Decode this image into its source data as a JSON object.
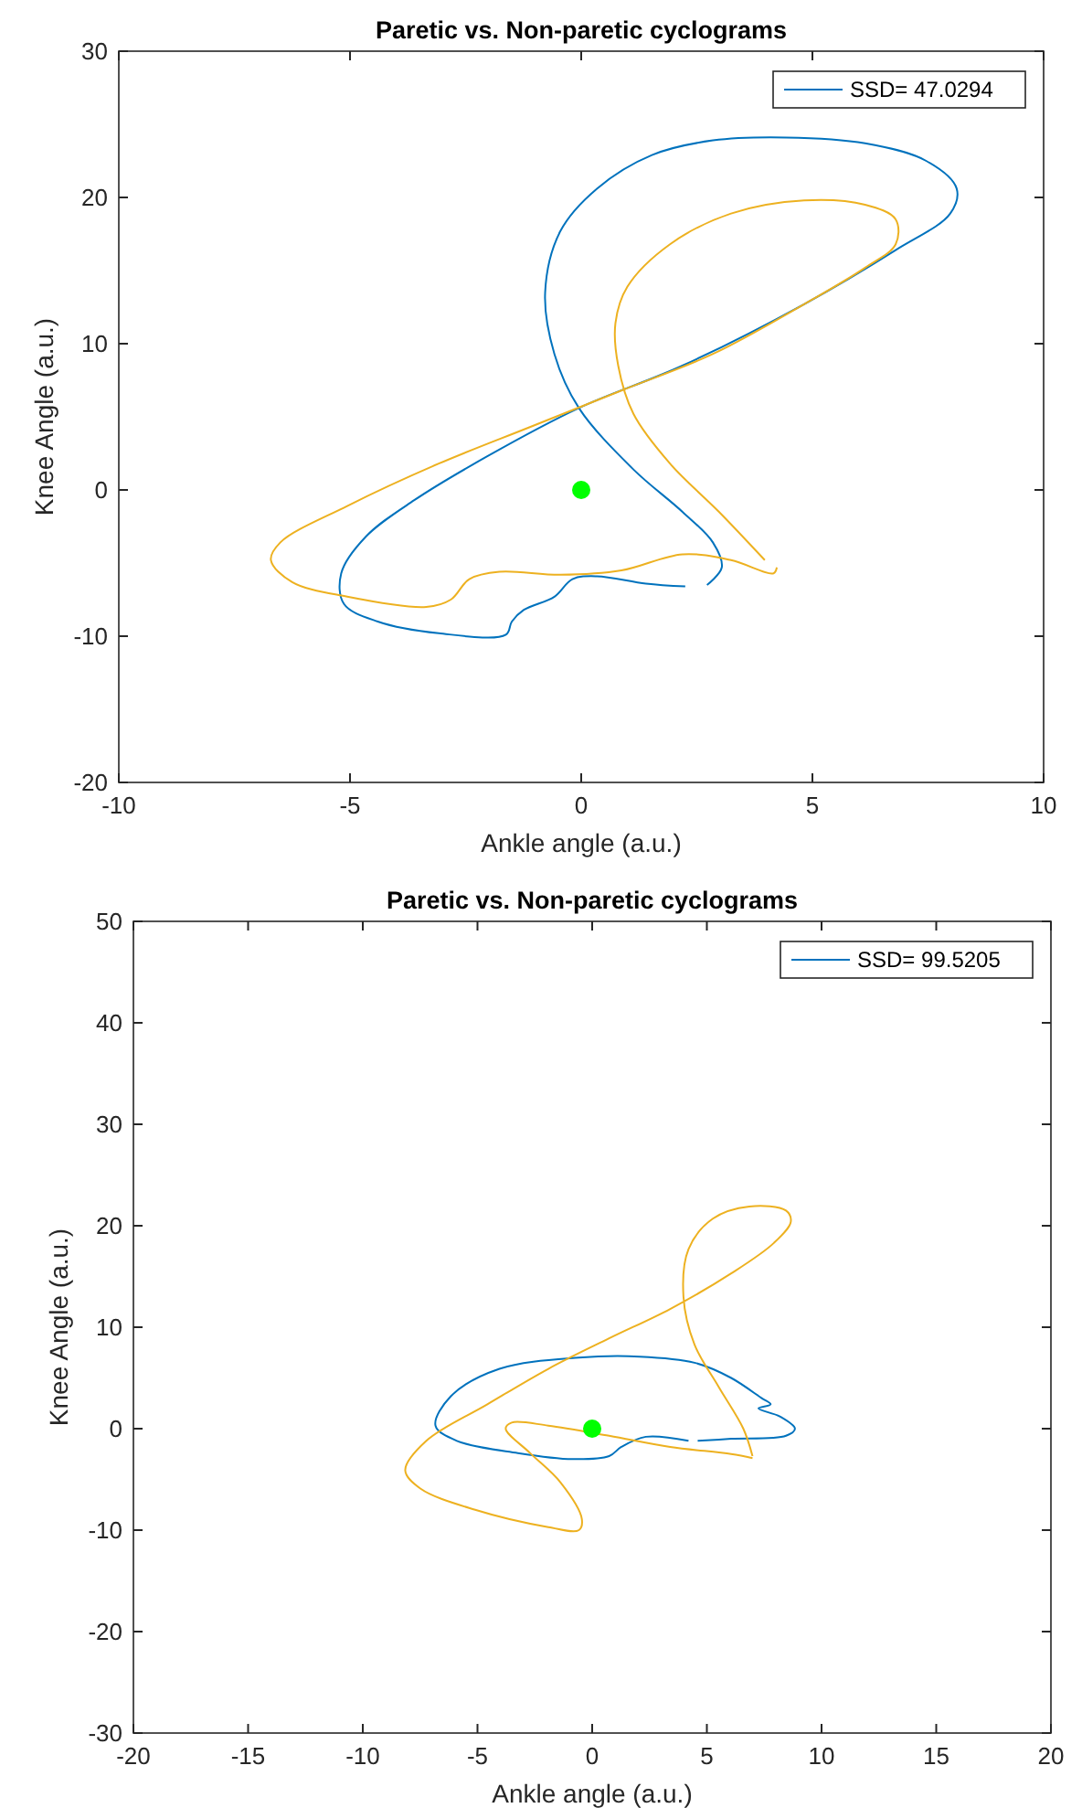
{
  "chart_data": [
    {
      "type": "line",
      "title": "Paretic vs. Non-paretic cyclograms",
      "xlabel": "Ankle angle (a.u.)",
      "ylabel": "Knee Angle (a.u.)",
      "xlim": [
        -10,
        10
      ],
      "xticks": [
        -10,
        -5,
        0,
        5,
        10
      ],
      "ylim": [
        -20,
        30
      ],
      "yticks": [
        -20,
        -10,
        0,
        10,
        20,
        30
      ],
      "legend": "top right",
      "grid": false,
      "series": [
        {
          "name": "SSD= 47.0294",
          "color": "#0072bd",
          "x": [
            2.25,
            1.4,
            0.34,
            -0.19,
            -0.58,
            -1.24,
            -1.5,
            -1.63,
            -3.08,
            -4.4,
            -5.13,
            -5.19,
            -4.66,
            -3.61,
            -2.03,
            -0.05,
            2.19,
            4.82,
            6.8,
            7.98,
            8.12,
            7.46,
            6.14,
            4.43,
            2.85,
            1.53,
            0.34,
            -0.45,
            -0.78,
            -0.58,
            -0.05,
            1.13,
            2.19,
            2.85,
            3.04,
            2.72
          ],
          "values": [
            -6.6,
            -6.4,
            -5.9,
            -6.1,
            -7.3,
            -8.2,
            -9,
            -9.9,
            -9.8,
            -9,
            -7.8,
            -5.7,
            -3.2,
            -0.7,
            2.3,
            5.6,
            8.5,
            12.7,
            16.4,
            18.9,
            20.6,
            22.5,
            23.7,
            24.1,
            23.9,
            22.9,
            20.6,
            17.7,
            13.5,
            9.3,
            5.6,
            1.4,
            -1.5,
            -3.6,
            -5.3,
            -6.5
          ]
        },
        {
          "color": "#edb120",
          "x": [
            3.97,
            2.98,
            1.92,
            1.13,
            0.8,
            0.74,
            1,
            1.92,
            3.24,
            4.82,
            6.14,
            6.8,
            6.8,
            6.14,
            4.82,
            2.85,
            0.87,
            -1.11,
            -3.08,
            -5.06,
            -6.51,
            -6.71,
            -6.25,
            -5.06,
            -3.35,
            -2.82,
            -2.42,
            -1.77,
            -0.45,
            0.87,
            2.19,
            3.24,
            4.16,
            4.23
          ],
          "values": [
            -4.8,
            -1.5,
            1.8,
            5.2,
            8.5,
            11.4,
            13.9,
            16.8,
            18.9,
            19.8,
            19.5,
            18.5,
            16.8,
            15.2,
            12.7,
            9.3,
            6.8,
            4.3,
            1.8,
            -1.1,
            -3.6,
            -4.8,
            -6.3,
            -7.3,
            -8,
            -7.5,
            -6.1,
            -5.6,
            -5.8,
            -5.5,
            -4.4,
            -4.8,
            -5.7,
            -5.3
          ]
        },
        {
          "type": "scatter",
          "marker": "circle",
          "color": "#00ff00",
          "x": [
            0
          ],
          "values": [
            0
          ]
        }
      ]
    },
    {
      "type": "line",
      "title": "Paretic vs. Non-paretic cyclograms",
      "xlabel": "Ankle angle (a.u.)",
      "ylabel": "Knee Angle (a.u.)",
      "xlim": [
        -20,
        20
      ],
      "xticks": [
        -20,
        -15,
        -10,
        -5,
        0,
        5,
        10,
        15,
        20
      ],
      "ylim": [
        -30,
        50
      ],
      "yticks": [
        -30,
        -20,
        -10,
        0,
        10,
        20,
        30,
        40,
        50
      ],
      "legend": "top right",
      "grid": false,
      "series": [
        {
          "name": "SSD= 99.5205",
          "color": "#0072bd",
          "x": [
            4.2,
            2.34,
            1.27,
            0.74,
            -0.85,
            -3.24,
            -5.9,
            -6.83,
            -6.16,
            -4.04,
            -0.58,
            2.07,
            4.46,
            6.06,
            7.39,
            7.78,
            7.25,
            8.18,
            8.84,
            8.45,
            6.06,
            4.6
          ],
          "values": [
            -1.2,
            -0.8,
            -1.8,
            -2.7,
            -3,
            -2.4,
            -1.2,
            0.3,
            3.2,
            5.9,
            7,
            7.1,
            6.5,
            5,
            3,
            2.4,
            2,
            1.2,
            0,
            -0.7,
            -1,
            -1.2
          ]
        },
        {
          "color": "#edb120",
          "x": [
            6.99,
            6.59,
            5.52,
            4.46,
            3.98,
            4.2,
            5.26,
            6.85,
            8.45,
            8.66,
            7.92,
            6.06,
            3.4,
            0.74,
            -1.91,
            -4.57,
            -7.23,
            -8.15,
            -7.49,
            -5.1,
            -1.91,
            -0.58,
            -0.45,
            -1.38,
            -2.71,
            -3.77,
            -3.51,
            -1.91,
            0.74,
            3.4,
            6.06,
            6.99
          ],
          "values": [
            -2.7,
            0,
            4.1,
            8.3,
            13,
            17.7,
            20.7,
            21.9,
            21.5,
            20.4,
            18.3,
            15.3,
            11.8,
            8.9,
            5.9,
            2.4,
            -1.2,
            -4.1,
            -5.9,
            -8,
            -9.7,
            -10,
            -8.9,
            -5.3,
            -2.4,
            0,
            0.6,
            0.3,
            -0.7,
            -1.8,
            -2.5,
            -2.9
          ]
        },
        {
          "type": "scatter",
          "marker": "circle",
          "color": "#00ff00",
          "x": [
            0
          ],
          "values": [
            0
          ]
        }
      ]
    }
  ]
}
